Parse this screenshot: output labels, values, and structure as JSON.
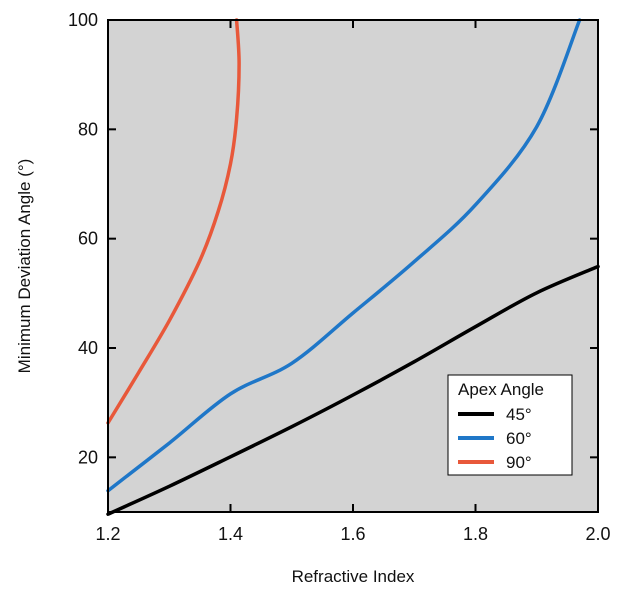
{
  "chart_data": {
    "type": "line",
    "title": "",
    "xlabel": "Refractive Index",
    "ylabel": "Minimum Deviation Angle (°)",
    "xlim": [
      1.2,
      2.0
    ],
    "ylim": [
      10,
      100
    ],
    "xticks": [
      1.2,
      1.4,
      1.6,
      1.8,
      2.0
    ],
    "xtick_labels": [
      "1.2",
      "1.4",
      "1.6",
      "1.8",
      "2.0"
    ],
    "yticks": [
      20,
      40,
      60,
      80,
      100
    ],
    "ytick_labels": [
      "20",
      "40",
      "60",
      "80",
      "100"
    ],
    "grid": false,
    "plot_background": "#d3d3d3",
    "legend": {
      "title": "Apex Angle",
      "position": "bottom-right"
    },
    "series": [
      {
        "name": "45°",
        "color": "#000000",
        "x": [
          1.2,
          1.3,
          1.4,
          1.5,
          1.6,
          1.7,
          1.8,
          1.9,
          2.0
        ],
        "y": [
          9.6,
          14.7,
          20.1,
          25.6,
          31.4,
          37.5,
          43.9,
          50.1,
          54.9
        ]
      },
      {
        "name": "60°",
        "color": "#1f77c8",
        "x": [
          1.2,
          1.3,
          1.4,
          1.5,
          1.6,
          1.7,
          1.8,
          1.9,
          1.97
        ],
        "y": [
          13.9,
          22.6,
          31.6,
          37.2,
          46.4,
          55.8,
          66.2,
          80.5,
          100
        ]
      },
      {
        "name": "90°",
        "color": "#e8583a",
        "x": [
          1.2,
          1.25,
          1.3,
          1.35,
          1.38,
          1.4,
          1.41,
          1.414,
          1.41
        ],
        "y": [
          26.3,
          35.5,
          45.0,
          56.0,
          65.0,
          73.7,
          82.0,
          92.0,
          100
        ]
      }
    ]
  }
}
